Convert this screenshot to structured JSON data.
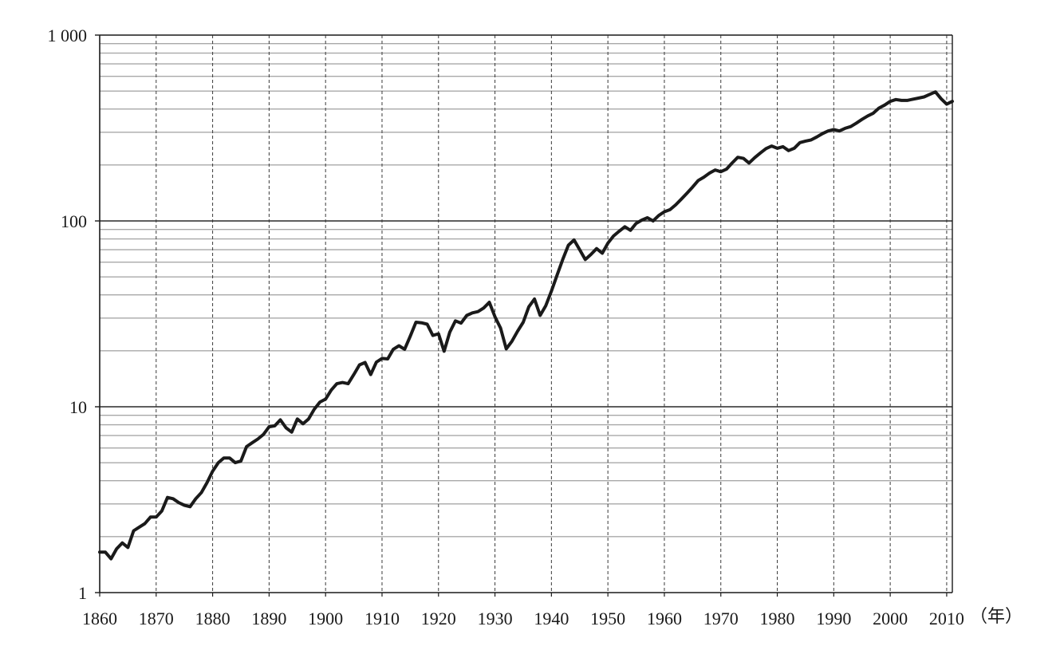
{
  "chart_data": {
    "type": "line",
    "title": "",
    "xlabel": "",
    "ylabel": "",
    "x_unit_label": "（年）",
    "yscale": "log",
    "xlim": [
      1860,
      2011
    ],
    "ylim": [
      1,
      1000
    ],
    "grid": true,
    "line_color": "#1a1a1a",
    "xticks": [
      1860,
      1870,
      1880,
      1890,
      1900,
      1910,
      1920,
      1930,
      1940,
      1950,
      1960,
      1970,
      1980,
      1990,
      2000,
      2010
    ],
    "xtick_labels": [
      "1860",
      "1870",
      "1880",
      "1890",
      "1900",
      "1910",
      "1920",
      "1930",
      "1940",
      "1950",
      "1960",
      "1970",
      "1980",
      "1990",
      "2000",
      "2010"
    ],
    "yticks": [
      1,
      10,
      100,
      1000
    ],
    "ytick_labels": [
      "1",
      "10",
      "100",
      "1 000"
    ],
    "series": [
      {
        "x": [
          1860,
          1861,
          1862,
          1863,
          1864,
          1865,
          1866,
          1867,
          1868,
          1869,
          1870,
          1871,
          1872,
          1873,
          1874,
          1875,
          1876,
          1877,
          1878,
          1879,
          1880,
          1881,
          1882,
          1883,
          1884,
          1885,
          1886,
          1887,
          1888,
          1889,
          1890,
          1891,
          1892,
          1893,
          1894,
          1895,
          1896,
          1897,
          1898,
          1899,
          1900,
          1901,
          1902,
          1903,
          1904,
          1905,
          1906,
          1907,
          1908,
          1909,
          1910,
          1911,
          1912,
          1913,
          1914,
          1915,
          1916,
          1917,
          1918,
          1919,
          1920,
          1921,
          1922,
          1923,
          1924,
          1925,
          1926,
          1927,
          1928,
          1929,
          1930,
          1931,
          1932,
          1933,
          1934,
          1935,
          1936,
          1937,
          1938,
          1939,
          1940,
          1941,
          1942,
          1943,
          1944,
          1945,
          1946,
          1947,
          1948,
          1949,
          1950,
          1951,
          1952,
          1953,
          1954,
          1955,
          1956,
          1957,
          1958,
          1959,
          1960,
          1961,
          1962,
          1963,
          1964,
          1965,
          1966,
          1967,
          1968,
          1969,
          1970,
          1971,
          1972,
          1973,
          1974,
          1975,
          1976,
          1977,
          1978,
          1979,
          1980,
          1981,
          1982,
          1983,
          1984,
          1985,
          1986,
          1987,
          1988,
          1989,
          1990,
          1991,
          1992,
          1993,
          1994,
          1995,
          1996,
          1997,
          1998,
          1999,
          2000,
          2001,
          2002,
          2003,
          2004,
          2005,
          2006,
          2007,
          2008,
          2009,
          2010,
          2011
        ],
        "values": [
          1.65,
          1.65,
          1.52,
          1.72,
          1.85,
          1.75,
          2.15,
          2.25,
          2.35,
          2.55,
          2.55,
          2.75,
          3.25,
          3.2,
          3.05,
          2.95,
          2.9,
          3.2,
          3.45,
          3.9,
          4.5,
          5.0,
          5.3,
          5.3,
          5.0,
          5.1,
          6.1,
          6.4,
          6.7,
          7.1,
          7.8,
          7.9,
          8.5,
          7.7,
          7.3,
          8.6,
          8.1,
          8.6,
          9.7,
          10.6,
          11.0,
          12.3,
          13.3,
          13.5,
          13.3,
          14.9,
          16.8,
          17.3,
          14.9,
          17.4,
          18.2,
          18.1,
          20.4,
          21.3,
          20.4,
          24.0,
          28.5,
          28.3,
          27.8,
          24.2,
          24.7,
          19.9,
          25.2,
          29.0,
          28.2,
          31.0,
          32.0,
          32.5,
          34.0,
          36.5,
          30.5,
          26.5,
          20.5,
          22.5,
          25.5,
          28.5,
          34.5,
          38.0,
          31.0,
          35.0,
          42.0,
          51.0,
          62.0,
          74.0,
          79.0,
          70.0,
          62.0,
          66.0,
          71.0,
          67.0,
          76.0,
          83.0,
          88.0,
          93.0,
          89.0,
          97.0,
          101.0,
          104.0,
          100.0,
          107.0,
          112.0,
          115.0,
          122.0,
          131.0,
          141.0,
          152.0,
          165.0,
          172.0,
          181.0,
          188.0,
          184.0,
          190.0,
          205.0,
          220.0,
          217.0,
          205.0,
          219.0,
          232.0,
          245.0,
          253.0,
          246.0,
          251.0,
          239.0,
          246.0,
          264.0,
          269.0,
          273.0,
          283.0,
          295.0,
          305.0,
          310.0,
          305.0,
          315.0,
          322.0,
          336.0,
          352.0,
          367.0,
          380.0,
          405.0,
          420.0,
          440.0,
          450.0,
          445.0,
          445.0,
          452.0,
          458.0,
          465.0,
          480.0,
          495.0,
          455.0,
          425.0,
          440.0
        ]
      }
    ]
  }
}
